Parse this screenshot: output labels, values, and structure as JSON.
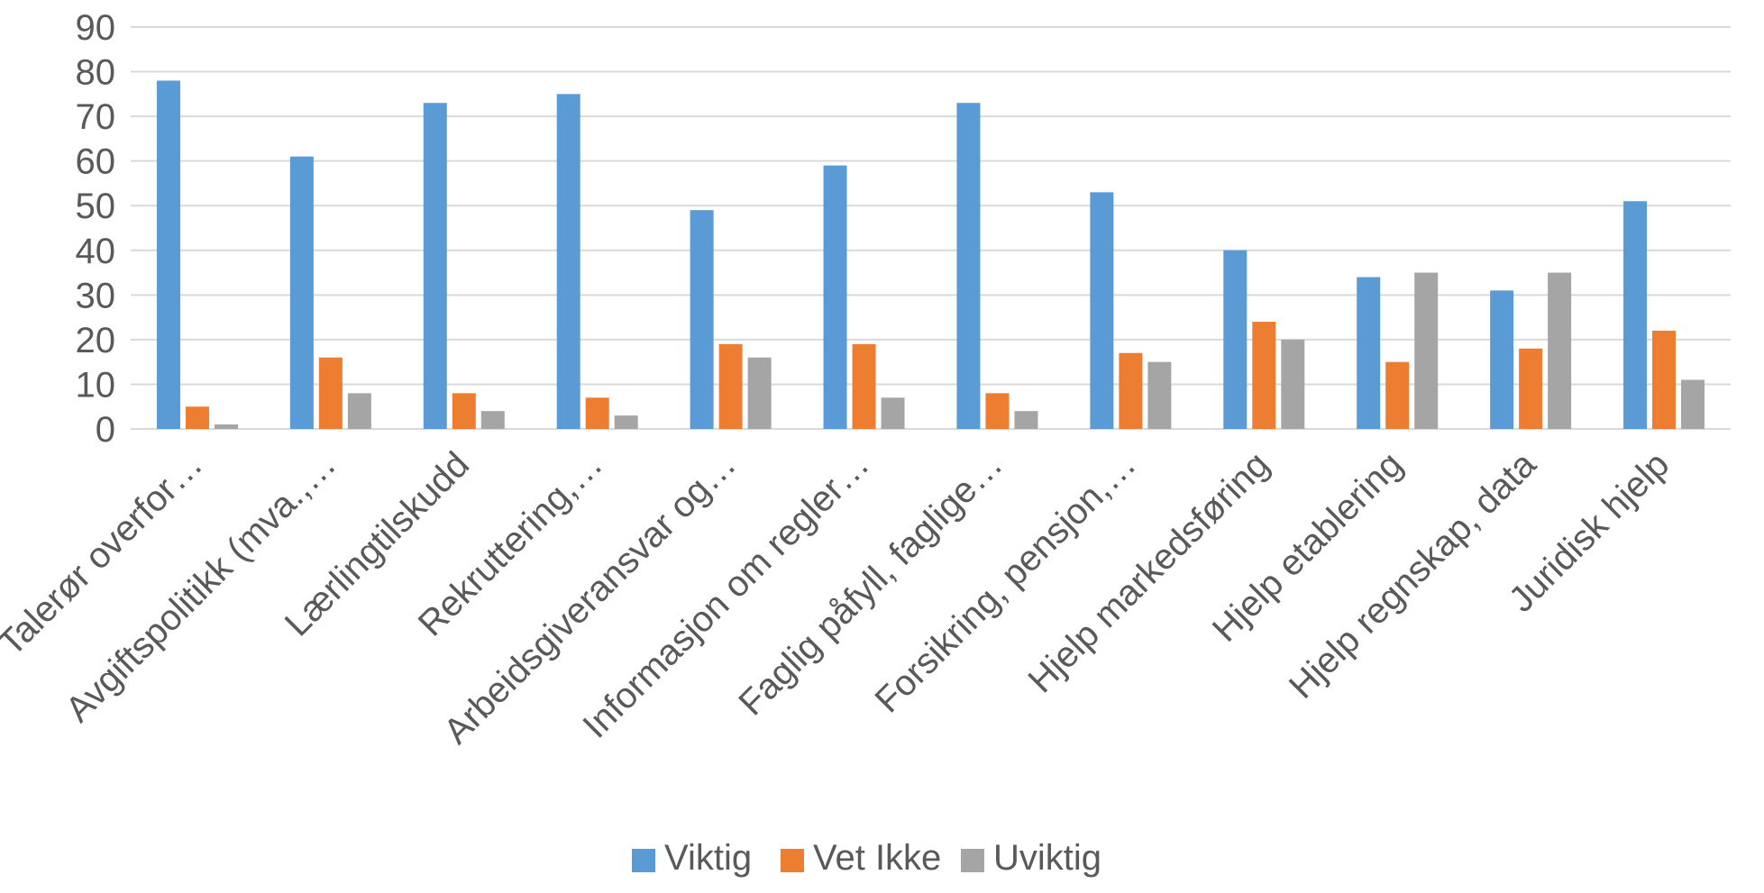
{
  "chart_data": {
    "type": "bar",
    "title": "",
    "xlabel": "",
    "ylabel": "",
    "ylim": [
      0,
      90
    ],
    "yticks": [
      0,
      10,
      20,
      30,
      40,
      50,
      60,
      70,
      80,
      90
    ],
    "grid": true,
    "legend_position": "bottom",
    "categories": [
      "Talerør overfor…",
      "Avgiftspolitikk (mva.,…",
      "Lærlingtilskudd",
      "Rekruttering,…",
      "Arbeidsgiveransvar og…",
      "Informasjon om regler…",
      "Faglig påfyll, faglige…",
      "Forsikring, pensjon,…",
      "Hjelp markedsføring",
      "Hjelp etablering",
      "Hjelp regnskap, data",
      "Juridisk hjelp"
    ],
    "series": [
      {
        "name": "Viktig",
        "color": "#5b9bd5",
        "values": [
          78,
          61,
          73,
          75,
          49,
          59,
          73,
          53,
          40,
          34,
          31,
          51
        ]
      },
      {
        "name": "Vet Ikke",
        "color": "#ed7d31",
        "values": [
          5,
          16,
          8,
          7,
          19,
          19,
          8,
          17,
          24,
          15,
          18,
          22
        ]
      },
      {
        "name": "Uviktig",
        "color": "#a5a5a5",
        "values": [
          1,
          8,
          4,
          3,
          16,
          7,
          4,
          15,
          20,
          35,
          35,
          11
        ]
      }
    ]
  }
}
